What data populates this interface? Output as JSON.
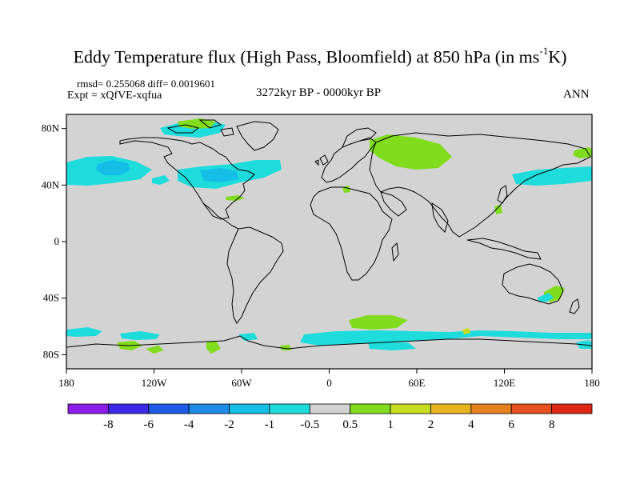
{
  "title": {
    "main": "Eddy Temperature flux (High Pass, Bloomfield) at 850 hPa (in ms",
    "superscript": "-1",
    "unit_end": "K)"
  },
  "stats": {
    "rmsd_label": "rmsd= 0.255068 diff= 0.0019601",
    "experiment": "Expt = xQfVE-xqfua",
    "period": "3272kyr BP - 0000kyr BP",
    "season": "ANN"
  },
  "axes": {
    "lat_labels": [
      "80N",
      "40N",
      "0",
      "40S",
      "80S"
    ],
    "lat_values": [
      80,
      40,
      0,
      -40,
      -80
    ],
    "lon_labels": [
      "180",
      "120W",
      "60W",
      "0",
      "60E",
      "120E",
      "180"
    ],
    "lon_values": [
      -180,
      -120,
      -60,
      0,
      60,
      120,
      180
    ]
  },
  "colorbar": {
    "labels": [
      "-8",
      "-6",
      "-4",
      "-2",
      "-1",
      "-0.5",
      "0.5",
      "1",
      "2",
      "4",
      "6",
      "8"
    ],
    "colors": [
      "#8a1ee6",
      "#3c28e6",
      "#1e5ae6",
      "#1e8ce6",
      "#14bee6",
      "#1edcdc",
      "#d3d3d3",
      "#82dc1e",
      "#c8dc1e",
      "#e6b41e",
      "#e6821e",
      "#e6501e",
      "#dc2814"
    ]
  },
  "colors": {
    "land_bg": "#d3d3d3",
    "cyan": "#1edcdc",
    "light_blue": "#14bee6",
    "green": "#82dc1e",
    "yellow": "#c8dc1e",
    "coast": "#000000"
  }
}
